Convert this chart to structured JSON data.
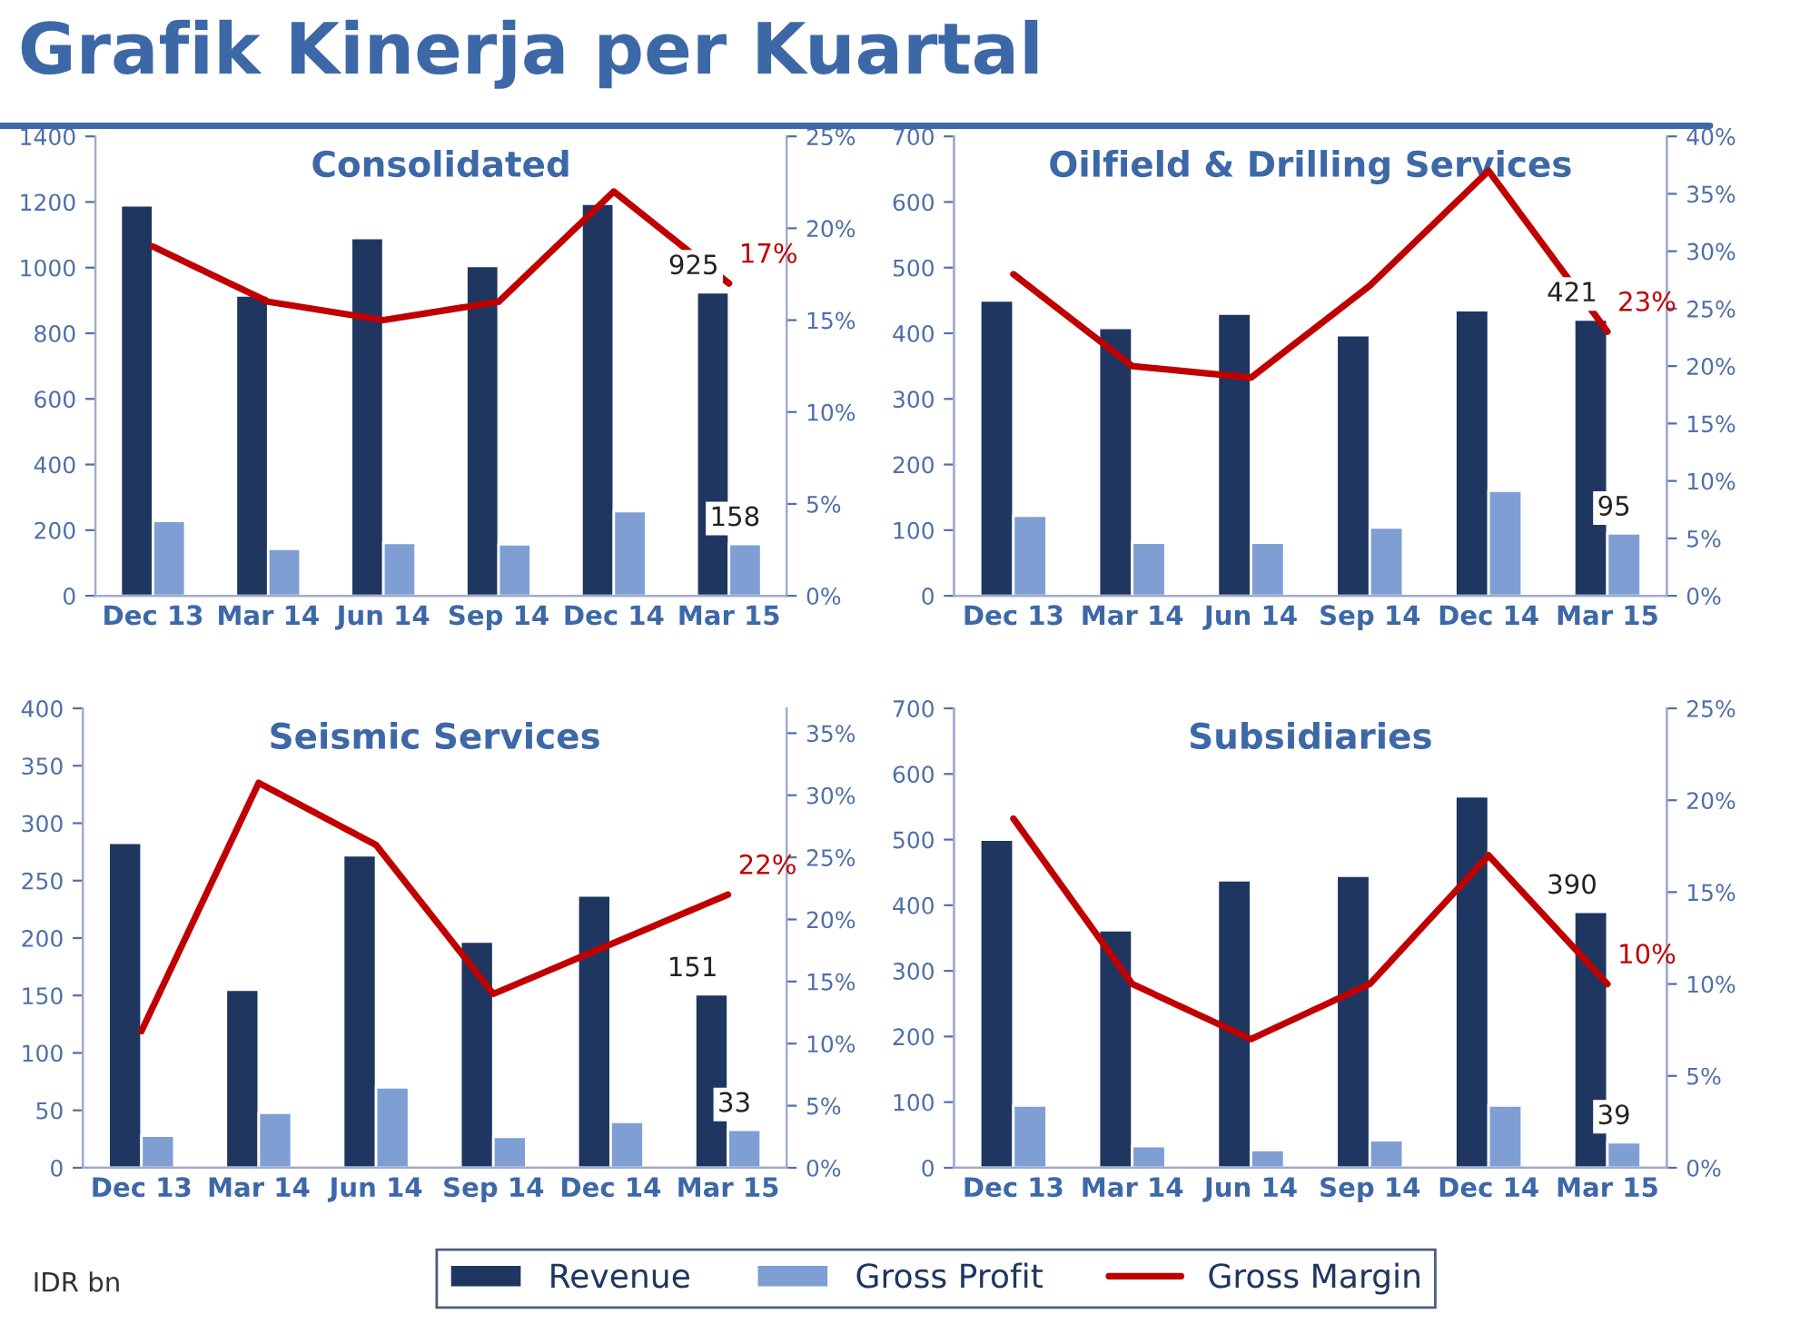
{
  "chart_data": [
    {
      "type": "bar",
      "title": "Consolidated",
      "categories": [
        "Dec 13",
        "Mar 14",
        "Jun 14",
        "Sep 14",
        "Dec 14",
        "Mar 15"
      ],
      "ylim": [
        0,
        1400
      ],
      "yticks": [
        0,
        200,
        400,
        600,
        800,
        1000,
        1200,
        1400
      ],
      "y2lim": [
        0,
        25
      ],
      "y2ticks": [
        {
          "value": 0,
          "label": "0%"
        },
        {
          "value": 5,
          "label": "5%"
        },
        {
          "value": 10,
          "label": "10%"
        },
        {
          "value": 15,
          "label": "15%"
        },
        {
          "value": 20,
          "label": "20%"
        },
        {
          "value": 25,
          "label": "25%"
        }
      ],
      "grid": false,
      "legend": "bottom",
      "annotations": [
        "Grafik Kinerja per Kuartal",
        "IDR bn"
      ],
      "series": [
        {
          "name": "Revenue",
          "color": "#1f3660",
          "values": [
            1190,
            915,
            1090,
            1005,
            1195,
            925
          ],
          "value_labels": [
            null,
            null,
            null,
            null,
            null,
            "925"
          ]
        },
        {
          "name": "Gross Profit",
          "color": "#7f9fd4",
          "values": [
            228,
            143,
            161,
            157,
            258,
            158
          ],
          "value_labels": [
            null,
            null,
            null,
            null,
            null,
            "158"
          ]
        },
        {
          "name": "Gross Margin",
          "type": "line",
          "axis": "y2",
          "color": "#c00000",
          "values": [
            19,
            16,
            15,
            16,
            22,
            17
          ],
          "value_labels": [
            null,
            null,
            null,
            null,
            null,
            "17%"
          ]
        }
      ]
    },
    {
      "type": "bar",
      "title": "Oilfield & Drilling Services",
      "categories": [
        "Dec 13",
        "Mar 14",
        "Jun 14",
        "Sep 14",
        "Dec 14",
        "Mar 15"
      ],
      "ylim": [
        0,
        700
      ],
      "yticks": [
        0,
        100,
        200,
        300,
        400,
        500,
        600,
        700
      ],
      "y2lim": [
        0,
        40
      ],
      "y2ticks": [
        {
          "value": 0,
          "label": "0%"
        },
        {
          "value": 5,
          "label": "5%"
        },
        {
          "value": 10,
          "label": "10%"
        },
        {
          "value": 15,
          "label": "15%"
        },
        {
          "value": 20,
          "label": "20%"
        },
        {
          "value": 25,
          "label": "25%"
        },
        {
          "value": 30,
          "label": "30%"
        },
        {
          "value": 35,
          "label": "35%"
        },
        {
          "value": 40,
          "label": "40%"
        }
      ],
      "grid": false,
      "series": [
        {
          "name": "Revenue",
          "color": "#1f3660",
          "values": [
            450,
            408,
            430,
            397,
            435,
            421
          ],
          "value_labels": [
            null,
            null,
            null,
            null,
            null,
            "421"
          ]
        },
        {
          "name": "Gross Profit",
          "color": "#7f9fd4",
          "values": [
            122,
            81,
            81,
            104,
            160,
            95
          ],
          "value_labels": [
            null,
            null,
            null,
            null,
            null,
            "95"
          ]
        },
        {
          "name": "Gross Margin",
          "type": "line",
          "axis": "y2",
          "color": "#c00000",
          "values": [
            28,
            20,
            19,
            27,
            37,
            23
          ],
          "value_labels": [
            null,
            null,
            null,
            null,
            null,
            "23%"
          ]
        }
      ]
    },
    {
      "type": "bar",
      "title": "Seismic Services",
      "categories": [
        "Dec 13",
        "Mar 14",
        "Jun 14",
        "Sep 14",
        "Dec 14",
        "Mar 15"
      ],
      "ylim": [
        0,
        400
      ],
      "yticks": [
        0,
        50,
        100,
        150,
        200,
        250,
        300,
        350,
        400
      ],
      "y2lim": [
        0,
        37
      ],
      "y2ticks": [
        {
          "value": 0,
          "label": "0%"
        },
        {
          "value": 5,
          "label": "5%"
        },
        {
          "value": 10,
          "label": "10%"
        },
        {
          "value": 15,
          "label": "15%"
        },
        {
          "value": 20,
          "label": "20%"
        },
        {
          "value": 25,
          "label": "25%"
        },
        {
          "value": 30,
          "label": "30%"
        },
        {
          "value": 35,
          "label": "35%"
        }
      ],
      "grid": false,
      "series": [
        {
          "name": "Revenue",
          "color": "#1f3660",
          "values": [
            283,
            155,
            272,
            197,
            237,
            151
          ],
          "value_labels": [
            null,
            null,
            null,
            null,
            null,
            "151"
          ]
        },
        {
          "name": "Gross Profit",
          "color": "#7f9fd4",
          "values": [
            28,
            48,
            70,
            27,
            40,
            33
          ],
          "value_labels": [
            null,
            null,
            null,
            null,
            null,
            "33"
          ]
        },
        {
          "name": "Gross Margin",
          "type": "line",
          "axis": "y2",
          "color": "#c00000",
          "values": [
            11,
            31,
            26,
            14,
            18,
            22
          ],
          "value_labels": [
            null,
            null,
            null,
            null,
            null,
            "22%"
          ]
        }
      ]
    },
    {
      "type": "bar",
      "title": "Subsidiaries",
      "categories": [
        "Dec 13",
        "Mar 14",
        "Jun 14",
        "Sep 14",
        "Dec 14",
        "Mar 15"
      ],
      "ylim": [
        0,
        700
      ],
      "yticks": [
        0,
        100,
        200,
        300,
        400,
        500,
        600,
        700
      ],
      "y2lim": [
        0,
        25
      ],
      "y2ticks": [
        {
          "value": 0,
          "label": "0%"
        },
        {
          "value": 5,
          "label": "5%"
        },
        {
          "value": 10,
          "label": "10%"
        },
        {
          "value": 15,
          "label": "15%"
        },
        {
          "value": 20,
          "label": "20%"
        },
        {
          "value": 25,
          "label": "25%"
        }
      ],
      "grid": false,
      "series": [
        {
          "name": "Revenue",
          "color": "#1f3660",
          "values": [
            500,
            362,
            438,
            445,
            566,
            390
          ],
          "value_labels": [
            null,
            null,
            null,
            null,
            null,
            "390"
          ]
        },
        {
          "name": "Gross Profit",
          "color": "#7f9fd4",
          "values": [
            95,
            33,
            27,
            42,
            95,
            39
          ],
          "value_labels": [
            null,
            null,
            null,
            null,
            null,
            "39"
          ]
        },
        {
          "name": "Gross Margin",
          "type": "line",
          "axis": "y2",
          "color": "#c00000",
          "values": [
            19,
            10,
            7,
            10,
            17,
            10
          ],
          "value_labels": [
            null,
            null,
            null,
            null,
            null,
            "10%"
          ]
        }
      ]
    }
  ]
}
